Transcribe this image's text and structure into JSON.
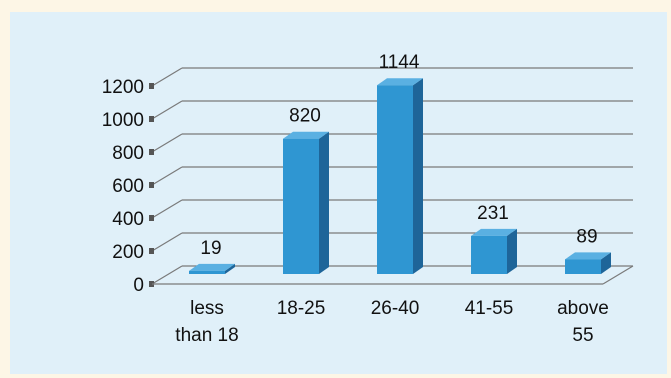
{
  "colors": {
    "background": "#fdf6e6",
    "panel": "#e0f0f9",
    "bar_front": "#2f96d2",
    "bar_side": "#1e6599",
    "bar_top": "#5ab0e2",
    "grid": "#7a7a7a"
  },
  "chart_data": {
    "type": "bar",
    "title": "",
    "xlabel": "",
    "ylabel": "",
    "categories": [
      [
        "less",
        "than 18"
      ],
      [
        "18-25"
      ],
      [
        "26-40"
      ],
      [
        "41-55"
      ],
      [
        "above",
        "55"
      ]
    ],
    "values": [
      19,
      820,
      1144,
      231,
      89
    ],
    "ylim": [
      0,
      1200
    ],
    "yticks": [
      0,
      200,
      400,
      600,
      800,
      1000,
      1200
    ],
    "grid": true,
    "legend": "none",
    "style": "3d-column"
  }
}
